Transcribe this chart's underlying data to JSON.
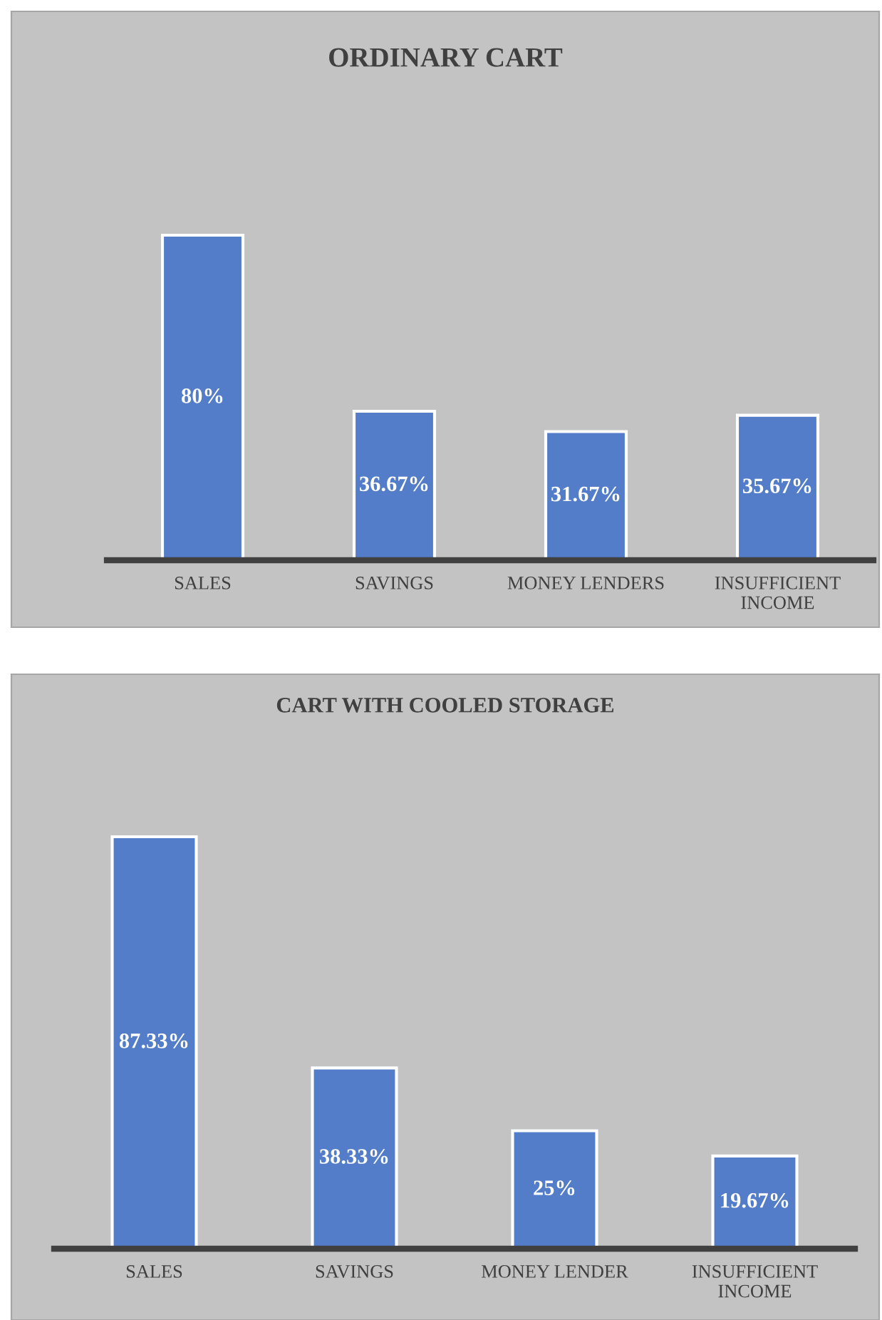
{
  "chart_data": [
    {
      "type": "bar",
      "title": "ORDINARY CART",
      "categories": [
        "SALES",
        "SAVINGS",
        "MONEY LENDERS",
        "INSUFFICIENT INCOME"
      ],
      "values": [
        80,
        36.67,
        31.67,
        35.67
      ],
      "value_labels": [
        "80%",
        "36.67%",
        "31.67%",
        "35.67%"
      ],
      "color": "#537dc8"
    },
    {
      "type": "bar",
      "title": "CART WITH COOLED STORAGE",
      "categories": [
        "SALES",
        "SAVINGS",
        "MONEY LENDER",
        "INSUFFICIENT INCOME"
      ],
      "values": [
        87.33,
        38.33,
        25,
        19.67
      ],
      "value_labels": [
        "87.33%",
        "38.33%",
        "25%",
        "19.67%"
      ],
      "color": "#537dc8"
    }
  ]
}
